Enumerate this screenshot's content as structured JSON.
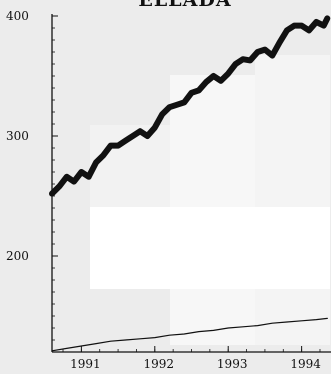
{
  "chart_data": {
    "type": "line",
    "title": "ELLADA",
    "xlabel": "",
    "ylabel": "",
    "x_ticks": [
      "1991",
      "1992",
      "1993",
      "1994"
    ],
    "y_ticks": [
      "400",
      "300",
      "200"
    ],
    "xlim": [
      1990.6,
      1994.4
    ],
    "ylim": [
      120,
      400
    ],
    "grid": false,
    "legend": "none",
    "series": [
      {
        "style": "thick",
        "color": "#111111",
        "x": [
          1990.6,
          1990.7,
          1990.8,
          1990.9,
          1991.0,
          1991.1,
          1991.2,
          1991.3,
          1991.4,
          1991.5,
          1991.6,
          1991.7,
          1991.8,
          1991.9,
          1992.0,
          1992.1,
          1992.2,
          1992.3,
          1992.4,
          1992.5,
          1992.6,
          1992.7,
          1992.8,
          1992.9,
          1993.0,
          1993.1,
          1993.2,
          1993.3,
          1993.4,
          1993.5,
          1993.6,
          1993.7,
          1993.8,
          1993.9,
          1994.0,
          1994.1,
          1994.2,
          1994.3,
          1994.35
        ],
        "y": [
          252,
          258,
          266,
          262,
          270,
          266,
          278,
          284,
          292,
          292,
          296,
          300,
          304,
          300,
          307,
          318,
          324,
          326,
          328,
          336,
          338,
          345,
          350,
          346,
          352,
          360,
          364,
          363,
          370,
          372,
          367,
          378,
          388,
          392,
          392,
          388,
          395,
          392,
          398
        ]
      },
      {
        "style": "thin",
        "color": "#111111",
        "x": [
          1990.6,
          1990.8,
          1991.0,
          1991.2,
          1991.4,
          1991.6,
          1991.8,
          1992.0,
          1992.2,
          1992.4,
          1992.6,
          1992.8,
          1993.0,
          1993.2,
          1993.4,
          1993.6,
          1993.8,
          1994.0,
          1994.2,
          1994.35
        ],
        "y": [
          121,
          123,
          125,
          127,
          129,
          130,
          131,
          132,
          134,
          135,
          137,
          138,
          140,
          141,
          142,
          144,
          145,
          146,
          147,
          148
        ]
      }
    ]
  }
}
